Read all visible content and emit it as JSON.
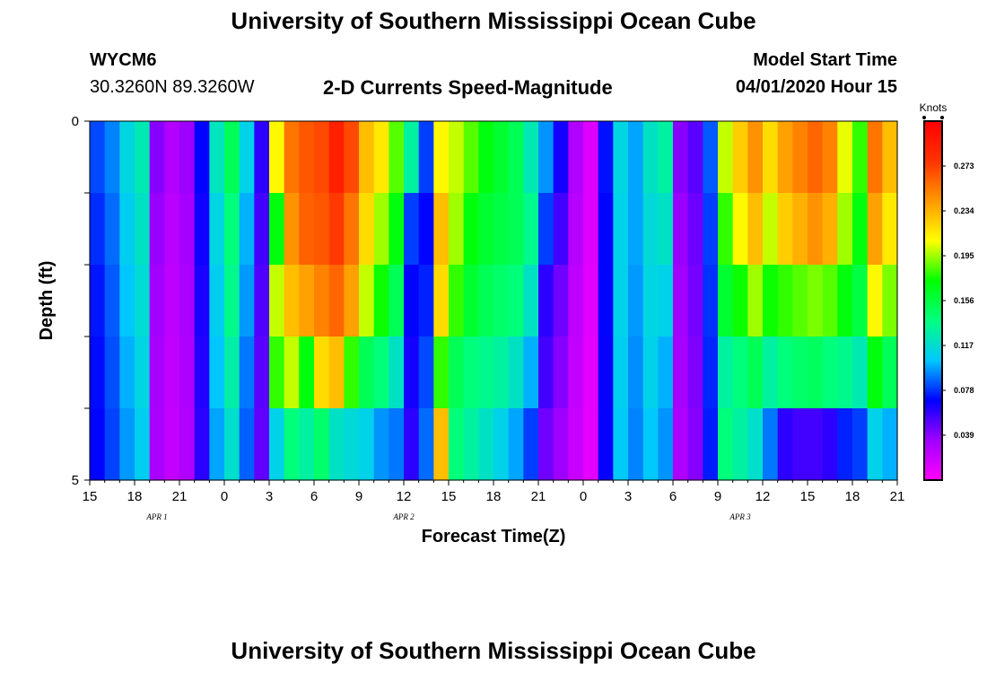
{
  "header": {
    "title": "University of Southern Mississippi Ocean Cube",
    "station": "WYCM6",
    "coords": "30.3260N 89.3260W",
    "product": "2-D Currents Speed-Magnitude",
    "model_start_label": "Model Start Time",
    "model_start_value": "04/01/2020 Hour 15"
  },
  "footer": {
    "title": "University of Southern Mississippi Ocean Cube"
  },
  "colors": {
    "scale": [
      "#ff00ff",
      "#a000ff",
      "#0000ff",
      "#00c8ff",
      "#00ff80",
      "#00ff00",
      "#ffff00",
      "#ff9900",
      "#ff3300",
      "#ff0000"
    ]
  },
  "chart_data": {
    "type": "heatmap",
    "xlabel": "Forecast Time(Z)",
    "ylabel": "Depth (ft)",
    "ylim": [
      0,
      5
    ],
    "y_tick_labels": [
      "0",
      "5"
    ],
    "x_tick_labels": [
      "15",
      "18",
      "21",
      "0",
      "3",
      "6",
      "9",
      "12",
      "15",
      "18",
      "21",
      "0",
      "3",
      "6",
      "9",
      "12",
      "15",
      "18",
      "21"
    ],
    "date_labels": [
      {
        "label": "APR 1",
        "at_hour": 19.5
      },
      {
        "label": "APR 2",
        "at_hour": 36
      },
      {
        "label": "APR 3",
        "at_hour": 58.5
      }
    ],
    "x_start_hour": 15,
    "x_hours": 54,
    "depth_layers": 5,
    "colorbar": {
      "title": "Knots",
      "range": [
        0.0,
        0.312
      ],
      "tick_labels": [
        "0.273",
        "0.234",
        "0.195",
        "0.156",
        "0.117",
        "0.078",
        "0.039"
      ]
    },
    "speed_columns_knots": [
      [
        0.082,
        0.077,
        0.073,
        0.071,
        0.07
      ],
      [
        0.092,
        0.088,
        0.085,
        0.083,
        0.081
      ],
      [
        0.112,
        0.108,
        0.104,
        0.1,
        0.096
      ],
      [
        0.125,
        0.12,
        0.116,
        0.112,
        0.108
      ],
      [
        0.04,
        0.036,
        0.034,
        0.032,
        0.031
      ],
      [
        0.028,
        0.025,
        0.024,
        0.023,
        0.022
      ],
      [
        0.035,
        0.033,
        0.031,
        0.03,
        0.029
      ],
      [
        0.07,
        0.066,
        0.064,
        0.062,
        0.06
      ],
      [
        0.122,
        0.112,
        0.108,
        0.104,
        0.098
      ],
      [
        0.15,
        0.14,
        0.135,
        0.128,
        0.118
      ],
      [
        0.11,
        0.1,
        0.096,
        0.09,
        0.086
      ],
      [
        0.06,
        0.055,
        0.052,
        0.05,
        0.048
      ],
      [
        0.21,
        0.17,
        0.2,
        0.18,
        0.11
      ],
      [
        0.255,
        0.245,
        0.23,
        0.2,
        0.14
      ],
      [
        0.265,
        0.262,
        0.24,
        0.17,
        0.13
      ],
      [
        0.27,
        0.265,
        0.25,
        0.22,
        0.145
      ],
      [
        0.29,
        0.275,
        0.26,
        0.23,
        0.12
      ],
      [
        0.27,
        0.255,
        0.24,
        0.18,
        0.115
      ],
      [
        0.23,
        0.22,
        0.2,
        0.15,
        0.11
      ],
      [
        0.215,
        0.195,
        0.175,
        0.14,
        0.095
      ],
      [
        0.185,
        0.17,
        0.15,
        0.12,
        0.09
      ],
      [
        0.13,
        0.08,
        0.07,
        0.065,
        0.06
      ],
      [
        0.08,
        0.07,
        0.075,
        0.082,
        0.088
      ],
      [
        0.21,
        0.23,
        0.22,
        0.18,
        0.23
      ],
      [
        0.2,
        0.195,
        0.18,
        0.15,
        0.14
      ],
      [
        0.185,
        0.17,
        0.16,
        0.14,
        0.13
      ],
      [
        0.17,
        0.16,
        0.15,
        0.135,
        0.12
      ],
      [
        0.16,
        0.155,
        0.145,
        0.13,
        0.11
      ],
      [
        0.15,
        0.15,
        0.14,
        0.12,
        0.098
      ],
      [
        0.125,
        0.135,
        0.12,
        0.1,
        0.08
      ],
      [
        0.095,
        0.08,
        0.06,
        0.055,
        0.045
      ],
      [
        0.065,
        0.055,
        0.045,
        0.04,
        0.035
      ],
      [
        0.028,
        0.026,
        0.024,
        0.022,
        0.02
      ],
      [
        0.012,
        0.012,
        0.011,
        0.01,
        0.01
      ],
      [
        0.072,
        0.07,
        0.07,
        0.068,
        0.068
      ],
      [
        0.112,
        0.11,
        0.11,
        0.108,
        0.106
      ],
      [
        0.098,
        0.098,
        0.096,
        0.094,
        0.092
      ],
      [
        0.12,
        0.115,
        0.112,
        0.11,
        0.105
      ],
      [
        0.13,
        0.12,
        0.11,
        0.1,
        0.095
      ],
      [
        0.04,
        0.036,
        0.034,
        0.032,
        0.03
      ],
      [
        0.05,
        0.046,
        0.044,
        0.042,
        0.04
      ],
      [
        0.085,
        0.08,
        0.078,
        0.076,
        0.074
      ],
      [
        0.2,
        0.18,
        0.16,
        0.13,
        0.14
      ],
      [
        0.225,
        0.21,
        0.175,
        0.14,
        0.13
      ],
      [
        0.245,
        0.23,
        0.195,
        0.15,
        0.118
      ],
      [
        0.22,
        0.2,
        0.175,
        0.13,
        0.09
      ],
      [
        0.24,
        0.225,
        0.18,
        0.14,
        0.06
      ],
      [
        0.25,
        0.235,
        0.185,
        0.145,
        0.055
      ],
      [
        0.26,
        0.245,
        0.19,
        0.148,
        0.055
      ],
      [
        0.25,
        0.235,
        0.185,
        0.14,
        0.06
      ],
      [
        0.205,
        0.195,
        0.17,
        0.135,
        0.075
      ],
      [
        0.18,
        0.17,
        0.155,
        0.125,
        0.08
      ],
      [
        0.255,
        0.24,
        0.21,
        0.17,
        0.11
      ],
      [
        0.23,
        0.215,
        0.19,
        0.15,
        0.1
      ]
    ]
  }
}
